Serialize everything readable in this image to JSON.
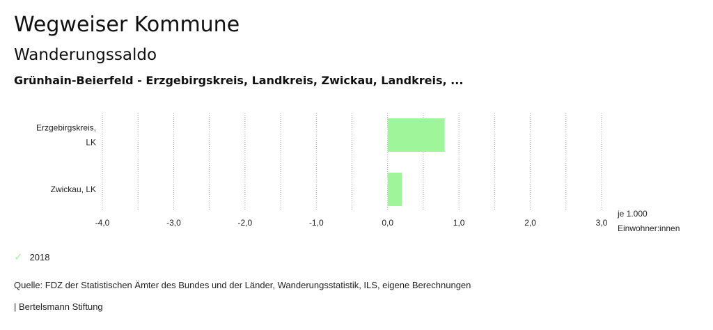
{
  "title": "Wegweiser Kommune",
  "subtitle": "Wanderungssaldo",
  "region": "Grünhain-Beierfeld - Erzgebirgskreis, Landkreis, Zwickau, Landkreis, ...",
  "chart_data": {
    "type": "bar",
    "orientation": "horizontal",
    "categories": [
      [
        "Erzgebirgskreis,",
        "LK"
      ],
      [
        "Zwickau, LK"
      ]
    ],
    "series": [
      {
        "name": "2018",
        "values": [
          0.8,
          0.2
        ],
        "color": "#9ef59a"
      }
    ],
    "xlim": [
      -4.0,
      3.0
    ],
    "xticks": [
      "-4,0",
      "-3,0",
      "-2,0",
      "-1,0",
      "0,0",
      "1,0",
      "2,0",
      "3,0"
    ],
    "xtick_values": [
      -4,
      -3,
      -2,
      -1,
      0,
      1,
      2,
      3
    ],
    "unit_label": [
      "je 1.000",
      "Einwohner:innen"
    ],
    "grid": "vertical-dotted"
  },
  "legend": {
    "label": "2018",
    "icon": "check-icon"
  },
  "source": "Quelle: FDZ der Statistischen Ämter des Bundes und der Länder, Wanderungsstatistik, ILS, eigene Berechnungen",
  "publisher": "| Bertelsmann Stiftung"
}
